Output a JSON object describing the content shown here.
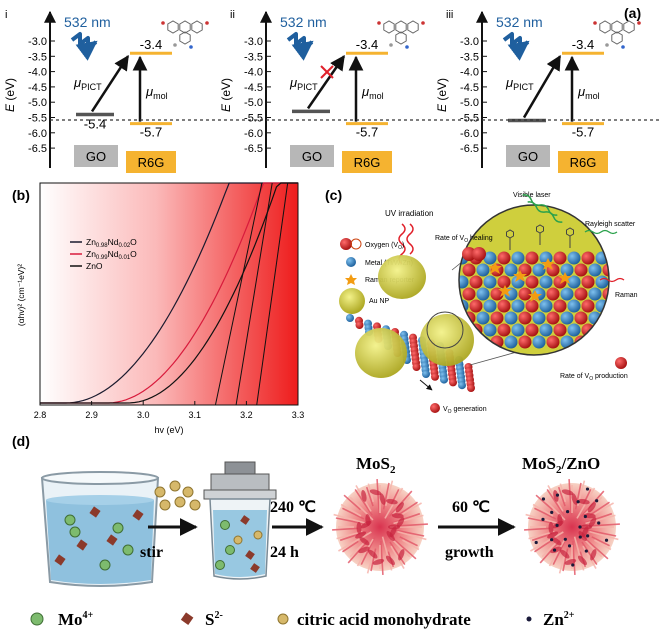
{
  "panel_a": {
    "label": "(a)",
    "subpanels": [
      {
        "roman": "i",
        "wavelength": "532 nm",
        "left_level": "-5.4",
        "left_box": "GO",
        "top_level": "-3.4",
        "right_level": "-5.7",
        "right_box": "R6G",
        "mu_pict": "μ",
        "mu_pict_sub": "PICT",
        "mu_mol": "μ",
        "mu_mol_sub": "mol"
      },
      {
        "roman": "ii",
        "wavelength": "532 nm",
        "left_level": "",
        "left_box": "GO",
        "top_level": "-3.4",
        "right_level": "-5.7",
        "right_box": "R6G",
        "mu_pict": "μ",
        "mu_pict_sub": "PICT",
        "mu_mol": "μ",
        "mu_mol_sub": "mol"
      },
      {
        "roman": "iii",
        "wavelength": "532 nm",
        "left_level": "",
        "left_box": "GO",
        "top_level": "-3.4",
        "right_level": "-5.7",
        "right_box": "R6G",
        "mu_pict": "μ",
        "mu_pict_sub": "PICT",
        "mu_mol": "μ",
        "mu_mol_sub": "mol"
      }
    ],
    "ylabel_1": "E (eV)",
    "ylabel_e": "E",
    "ylabel_unit": "(eV)",
    "ticks": [
      "-3.0",
      "-3.5",
      "-4.0",
      "-4.5",
      "-5.0",
      "-5.5",
      "-6.0",
      "-6.5"
    ]
  },
  "panel_b": {
    "label": "(b)",
    "xlabel": "hv (eV)",
    "ylabel": "(αhv)² (cm⁻¹eV)²",
    "xticks": [
      "2.8",
      "2.9",
      "3.0",
      "3.1",
      "3.2",
      "3.3"
    ],
    "legend": [
      {
        "base": "Zn",
        "s1": "0.98",
        "mid": "Nd",
        "s2": "0.02",
        "end": "O",
        "color": "#1a1a2e"
      },
      {
        "base": "Zn",
        "s1": "0.99",
        "mid": "Nd",
        "s2": "0.01",
        "end": "O",
        "color": "#d81b3c"
      },
      {
        "base": "ZnO",
        "s1": "",
        "mid": "",
        "s2": "",
        "end": "",
        "color": "#111111"
      }
    ]
  },
  "panel_c": {
    "label": "(c)",
    "uv": "UV irradiation",
    "legend": [
      "Oxygen (V",
      "Metal (Ti/W/Zn)",
      "Raman reporter",
      "Au NP"
    ],
    "legend_sub": "O",
    "legend_close": ")",
    "visible_laser": "Visible laser",
    "rayleigh": "Rayleigh scatter",
    "raman": "Raman",
    "healing": "Rate of V",
    "healing_sub": "O",
    "healing_end": " healing",
    "production": "Rate of V",
    "production_sub": "O",
    "production_end": " production",
    "generation": "V",
    "generation_sub": "O",
    "generation_end": " generation"
  },
  "panel_d": {
    "label": "(d)",
    "stir": "stir",
    "temp1": "240 ℃",
    "time1": "24 h",
    "product1": "MoS",
    "product1_sub": "2",
    "temp2": "60 ℃",
    "growth": "growth",
    "product2": "MoS",
    "product2_sub": "2",
    "product2_end": "/ZnO",
    "legend": {
      "mo": "Mo",
      "mo_sup": "4+",
      "s": "S",
      "s_sup": "2-",
      "citric": "citric acid monohydrate",
      "zn": "Zn",
      "zn_sup": "2+"
    }
  },
  "colors": {
    "accent_blue": "#1f5f9e",
    "orange": "#f5b330",
    "gray_box": "#b7b7b7",
    "red": "#e0202a"
  }
}
